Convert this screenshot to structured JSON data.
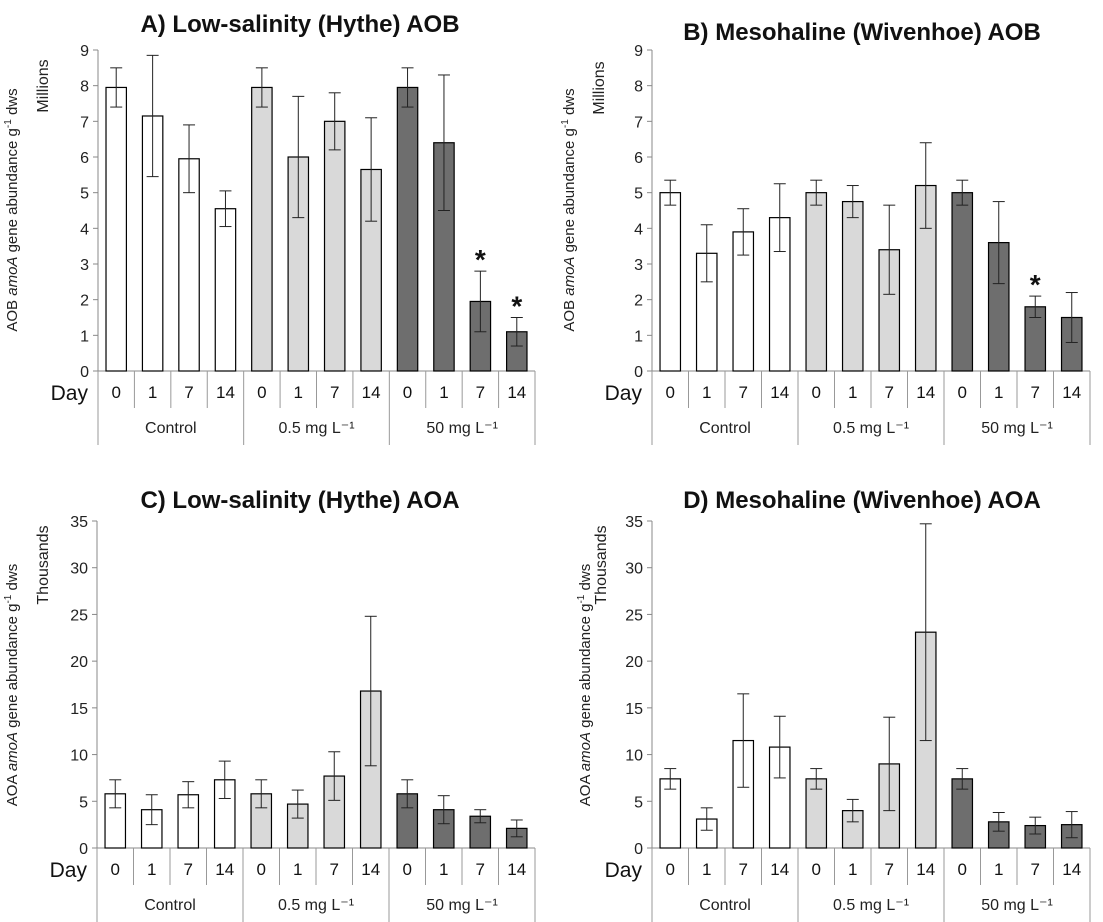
{
  "colors": {
    "control": "#ffffff",
    "low_dose": "#d9d9d9",
    "high_dose": "#6e6e6e",
    "outline": "#000000"
  },
  "chart_data": [
    {
      "type": "bar",
      "title": "A) Low-salinity (Hythe) AOB",
      "ylabel": "AOB amoA gene abundance g⁻¹ dws",
      "yunit": "Millions",
      "ylim": [
        0,
        9
      ],
      "yticks": [
        0,
        1,
        2,
        3,
        4,
        5,
        6,
        7,
        8,
        9
      ],
      "xlabel": "Day",
      "groups": [
        {
          "label": "Control",
          "days": [
            "0",
            "1",
            "7",
            "14"
          ],
          "values": [
            7.95,
            7.15,
            5.95,
            4.55
          ],
          "errors": [
            0.55,
            1.7,
            0.95,
            0.5
          ],
          "significant": [
            false,
            false,
            false,
            false
          ]
        },
        {
          "label": "0.5 mg L⁻¹",
          "days": [
            "0",
            "1",
            "7",
            "14"
          ],
          "values": [
            7.95,
            6.0,
            7.0,
            5.65
          ],
          "errors": [
            0.55,
            1.7,
            0.8,
            1.45
          ],
          "significant": [
            false,
            false,
            false,
            false
          ]
        },
        {
          "label": "50 mg L⁻¹",
          "days": [
            "0",
            "1",
            "7",
            "14"
          ],
          "values": [
            7.95,
            6.4,
            1.95,
            1.1
          ],
          "errors": [
            0.55,
            1.9,
            0.85,
            0.4
          ],
          "significant": [
            false,
            false,
            true,
            true
          ]
        }
      ]
    },
    {
      "type": "bar",
      "title": "B) Mesohaline (Wivenhoe) AOB",
      "ylabel": "AOB amoA gene abundance g⁻¹ dws",
      "yunit": "Millions",
      "ylim": [
        0,
        9
      ],
      "yticks": [
        0,
        1,
        2,
        3,
        4,
        5,
        6,
        7,
        8,
        9
      ],
      "xlabel": "Day",
      "groups": [
        {
          "label": "Control",
          "days": [
            "0",
            "1",
            "7",
            "14"
          ],
          "values": [
            5.0,
            3.3,
            3.9,
            4.3
          ],
          "errors": [
            0.35,
            0.8,
            0.65,
            0.95
          ],
          "significant": [
            false,
            false,
            false,
            false
          ]
        },
        {
          "label": "0.5 mg L⁻¹",
          "days": [
            "0",
            "1",
            "7",
            "14"
          ],
          "values": [
            5.0,
            4.75,
            3.4,
            5.2
          ],
          "errors": [
            0.35,
            0.45,
            1.25,
            1.2
          ],
          "significant": [
            false,
            false,
            false,
            false
          ]
        },
        {
          "label": "50 mg L⁻¹",
          "days": [
            "0",
            "1",
            "7",
            "14"
          ],
          "values": [
            5.0,
            3.6,
            1.8,
            1.5
          ],
          "errors": [
            0.35,
            1.15,
            0.3,
            0.7
          ],
          "significant": [
            false,
            false,
            true,
            false
          ]
        }
      ]
    },
    {
      "type": "bar",
      "title": "C) Low-salinity (Hythe) AOA",
      "ylabel": "AOA amoA gene abundance g⁻¹ dws",
      "yunit": "Thousands",
      "ylim": [
        0,
        35
      ],
      "yticks": [
        0,
        5,
        10,
        15,
        20,
        25,
        30,
        35
      ],
      "xlabel": "Day",
      "groups": [
        {
          "label": "Control",
          "days": [
            "0",
            "1",
            "7",
            "14"
          ],
          "values": [
            5.8,
            4.1,
            5.7,
            7.3
          ],
          "errors": [
            1.5,
            1.6,
            1.4,
            2.0
          ],
          "significant": [
            false,
            false,
            false,
            false
          ]
        },
        {
          "label": "0.5 mg L⁻¹",
          "days": [
            "0",
            "1",
            "7",
            "14"
          ],
          "values": [
            5.8,
            4.7,
            7.7,
            16.8
          ],
          "errors": [
            1.5,
            1.5,
            2.6,
            8.0
          ],
          "significant": [
            false,
            false,
            false,
            false
          ]
        },
        {
          "label": "50 mg L⁻¹",
          "days": [
            "0",
            "1",
            "7",
            "14"
          ],
          "values": [
            5.8,
            4.1,
            3.4,
            2.1
          ],
          "errors": [
            1.5,
            1.5,
            0.7,
            0.9
          ],
          "significant": [
            false,
            false,
            false,
            false
          ]
        }
      ]
    },
    {
      "type": "bar",
      "title": "D) Mesohaline (Wivenhoe) AOA",
      "ylabel": "AOA amoA gene abundance g⁻¹ dws",
      "yunit": "Thousands",
      "ylim": [
        0,
        35
      ],
      "yticks": [
        0,
        5,
        10,
        15,
        20,
        25,
        30,
        35
      ],
      "xlabel": "Day",
      "groups": [
        {
          "label": "Control",
          "days": [
            "0",
            "1",
            "7",
            "14"
          ],
          "values": [
            7.4,
            3.1,
            11.5,
            10.8
          ],
          "errors": [
            1.1,
            1.2,
            5.0,
            3.3
          ],
          "significant": [
            false,
            false,
            false,
            false
          ]
        },
        {
          "label": "0.5 mg L⁻¹",
          "days": [
            "0",
            "1",
            "7",
            "14"
          ],
          "values": [
            7.4,
            4.0,
            9.0,
            23.1
          ],
          "errors": [
            1.1,
            1.2,
            5.0,
            11.6
          ],
          "significant": [
            false,
            false,
            false,
            false
          ]
        },
        {
          "label": "50 mg L⁻¹",
          "days": [
            "0",
            "1",
            "7",
            "14"
          ],
          "values": [
            7.4,
            2.8,
            2.4,
            2.5
          ],
          "errors": [
            1.1,
            1.0,
            0.9,
            1.4
          ],
          "significant": [
            false,
            false,
            false,
            false
          ]
        }
      ]
    }
  ],
  "significance_marker": "*"
}
